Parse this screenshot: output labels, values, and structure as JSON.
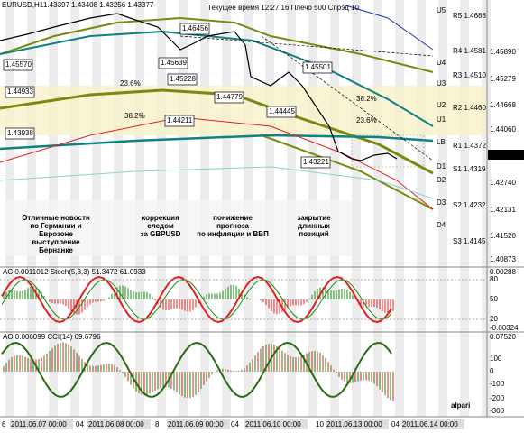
{
  "header": {
    "symbol": "EURUSD,H1",
    "ohlc": "1.43397 1.43408 1.43256 1.43377",
    "info": "Текущее время 12:27:16 Плечо 500 Спрэд 10"
  },
  "price_axis": [
    "1.45890",
    "1.45279",
    "1.44668",
    "1.44060",
    "1.42740",
    "1.42131",
    "1.41520",
    "1.40873"
  ],
  "current_price": "1.43377",
  "levels": [
    "U5",
    "U4",
    "U3",
    "U2",
    "U1",
    "LB",
    "D1",
    "D2",
    "D3",
    "D4"
  ],
  "pivots": [
    "R5 1.4688",
    "R4 1.4581",
    "R3 1.4510",
    "R2 1.4460",
    "R1 1.4372",
    "S1 1.4319",
    "S2 1.4232",
    "S3 1.4145"
  ],
  "price_boxes": [
    "1.45570",
    "1.46456",
    "1.45639",
    "1.45228",
    "1.44933",
    "1.44779",
    "1.45501",
    "1.44445",
    "1.44211",
    "1.43938",
    "1.43221"
  ],
  "fib": [
    "23.6%",
    "38.2%",
    "38.2%",
    "23.6%"
  ],
  "notes": [
    {
      "lines": [
        "Отличные новости",
        "по Германии и",
        "Еврозоне",
        "выступление",
        "Бернанке"
      ],
      "color": "#1a8a1a"
    },
    {
      "lines": [
        "коррекция",
        "следом",
        "за GBPUSD"
      ],
      "color": "#e01010"
    },
    {
      "lines": [
        "понижение",
        "прогноза",
        "по инфляции и ВВП"
      ],
      "color": "#e01010"
    },
    {
      "lines": [
        "закрытие",
        "длинных",
        "позиций"
      ],
      "color": "#1a8a1a"
    }
  ],
  "ac_pane": {
    "title": "AC 0.0011012  Stoch(5,3,3) 51.3472 61.0933",
    "axis": [
      "0.00288",
      "80",
      "50",
      "20",
      "-0.00324"
    ]
  },
  "ao_pane": {
    "title": "AO 0.006099  CCI(14) 69.6796",
    "axis": [
      "0.07520",
      "100",
      "0",
      "-100",
      "-200",
      "-300"
    ]
  },
  "time_axis": [
    "6",
    "2011.06.07 00:00",
    "04",
    "2011.06.08 00:00",
    "8",
    "2011.06.09 00:00",
    "04",
    "2011.06.10 00:00",
    "10",
    "2011.06.13 00:00",
    "04",
    "2011.06.14 00:00"
  ],
  "logo": "alpari"
}
